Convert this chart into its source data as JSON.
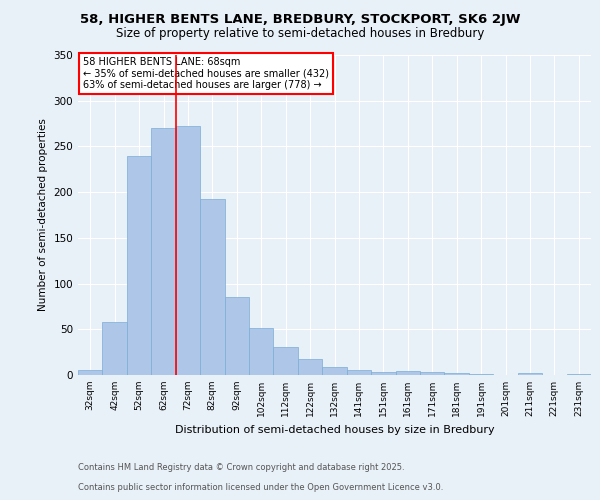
{
  "title1": "58, HIGHER BENTS LANE, BREDBURY, STOCKPORT, SK6 2JW",
  "title2": "Size of property relative to semi-detached houses in Bredbury",
  "xlabel": "Distribution of semi-detached houses by size in Bredbury",
  "ylabel": "Number of semi-detached properties",
  "categories": [
    "32sqm",
    "42sqm",
    "52sqm",
    "62sqm",
    "72sqm",
    "82sqm",
    "92sqm",
    "102sqm",
    "112sqm",
    "122sqm",
    "132sqm",
    "141sqm",
    "151sqm",
    "161sqm",
    "171sqm",
    "181sqm",
    "191sqm",
    "201sqm",
    "211sqm",
    "221sqm",
    "231sqm"
  ],
  "values": [
    5,
    58,
    240,
    270,
    272,
    193,
    85,
    51,
    31,
    18,
    9,
    5,
    3,
    4,
    3,
    2,
    1,
    0,
    2,
    0,
    1
  ],
  "bar_color": "#aec6e8",
  "bar_edge_color": "#7aadd4",
  "vline_color": "red",
  "vline_x": 3.5,
  "annotation_title": "58 HIGHER BENTS LANE: 68sqm",
  "annotation_line1": "← 35% of semi-detached houses are smaller (432)",
  "annotation_line2": "63% of semi-detached houses are larger (778) →",
  "annotation_box_color": "white",
  "annotation_box_edge": "red",
  "ylim": [
    0,
    350
  ],
  "yticks": [
    0,
    50,
    100,
    150,
    200,
    250,
    300,
    350
  ],
  "footer1": "Contains HM Land Registry data © Crown copyright and database right 2025.",
  "footer2": "Contains public sector information licensed under the Open Government Licence v3.0.",
  "bg_color": "#e8f0f8",
  "plot_bg_color": "#e8f0f8"
}
